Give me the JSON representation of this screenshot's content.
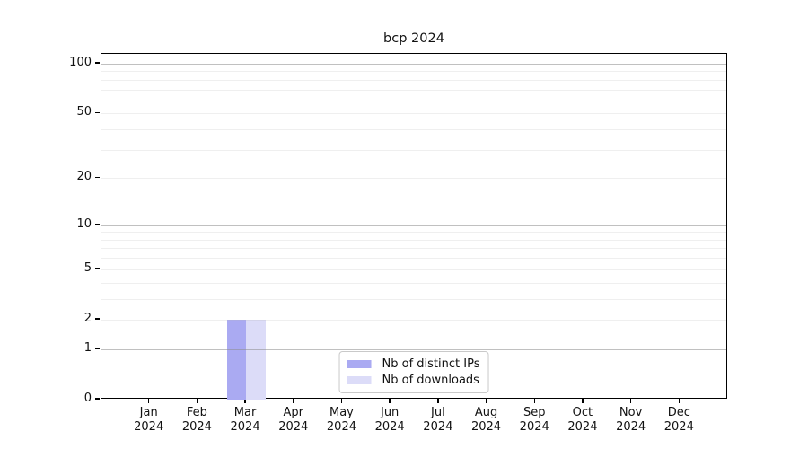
{
  "title": "bcp 2024",
  "chart_data": {
    "type": "bar",
    "title": "bcp 2024",
    "categories": [
      "Jan",
      "Feb",
      "Mar",
      "Apr",
      "May",
      "Jun",
      "Jul",
      "Aug",
      "Sep",
      "Oct",
      "Nov",
      "Dec"
    ],
    "category_year": "2024",
    "series": [
      {
        "name": "Nb of distinct IPs",
        "color": "#aaaaf2",
        "values": [
          0,
          0,
          2,
          0,
          0,
          0,
          0,
          0,
          0,
          0,
          0,
          0
        ]
      },
      {
        "name": "Nb of downloads",
        "color": "#dcdcf8",
        "values": [
          0,
          0,
          2,
          0,
          0,
          0,
          0,
          0,
          0,
          0,
          0,
          0
        ]
      }
    ],
    "xlabel": "",
    "ylabel": "",
    "yscale": "log10(1+x)",
    "yticks": [
      0,
      1,
      2,
      5,
      10,
      20,
      50,
      100
    ],
    "ylim": [
      0,
      115
    ],
    "grid": {
      "major": [
        1,
        10,
        100
      ],
      "minor": [
        2,
        3,
        4,
        5,
        6,
        7,
        8,
        9,
        20,
        30,
        40,
        50,
        60,
        70,
        80,
        90
      ]
    },
    "legend_position": "inside-bottom-center"
  },
  "legend": {
    "items": [
      {
        "label": "Nb of distinct IPs",
        "color": "#aaaaf2"
      },
      {
        "label": "Nb of downloads",
        "color": "#dcdcf8"
      }
    ]
  }
}
